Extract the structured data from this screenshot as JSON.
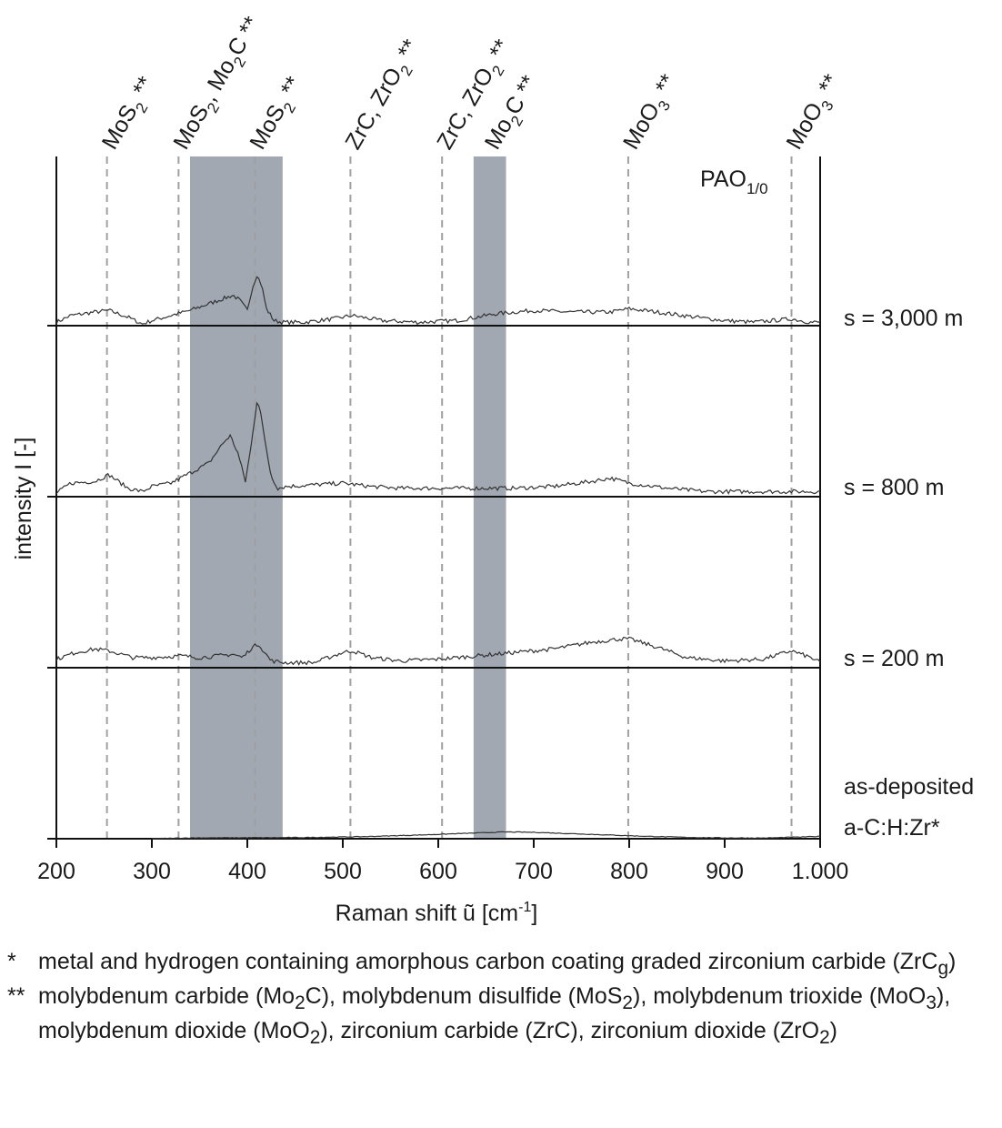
{
  "chart_data": {
    "type": "line",
    "title": "",
    "condition_label": "PAO",
    "condition_label_sub": "1/0",
    "xlabel": "Raman shift ũ [cm",
    "xlabel_sup": "-1",
    "xlabel_end": "]",
    "ylabel": "intensity I [-]",
    "xlim": [
      200,
      1000
    ],
    "xticks": [
      200,
      300,
      400,
      500,
      600,
      700,
      800,
      900,
      1000
    ],
    "xtick_labels": [
      "200",
      "300",
      "400",
      "500",
      "600",
      "700",
      "800",
      "900",
      "1.000"
    ],
    "shaded_regions": [
      {
        "from": 340,
        "to": 437
      },
      {
        "from": 637,
        "to": 671
      }
    ],
    "reference_lines": [
      {
        "x": 253,
        "label": "MoS",
        "sub": "2",
        "after": " **"
      },
      {
        "x": 328,
        "label": "MoS",
        "sub": "2",
        "after": ", Mo",
        "sub2": "2",
        "after2": "C **"
      },
      {
        "x": 408,
        "label": "MoS",
        "sub": "2",
        "after": " **"
      },
      {
        "x": 508,
        "label": "ZrC, ZrO",
        "sub": "2",
        "after": " **"
      },
      {
        "x": 604,
        "label": "ZrC, ZrO",
        "sub": "2",
        "after": " **"
      },
      {
        "x": 654,
        "label": "Mo",
        "sub": "2",
        "after": "C **",
        "no_line": true
      },
      {
        "x": 799,
        "label": "MoO",
        "sub": "3",
        "after": " **"
      },
      {
        "x": 970,
        "label": "MoO",
        "sub": "3",
        "after": " **"
      }
    ],
    "series": [
      {
        "name": "s = 3,000 m",
        "x": [
          200,
          215,
          240,
          255,
          275,
          290,
          300,
          320,
          340,
          360,
          375,
          385,
          392,
          400,
          405,
          410,
          415,
          420,
          428,
          437,
          460,
          490,
          510,
          540,
          580,
          620,
          660,
          700,
          740,
          780,
          800,
          830,
          870,
          900,
          930,
          970,
          990,
          1000
        ],
        "values": [
          0.02,
          0.06,
          0.08,
          0.09,
          0.05,
          0.01,
          0.03,
          0.06,
          0.09,
          0.13,
          0.16,
          0.18,
          0.15,
          0.09,
          0.22,
          0.3,
          0.24,
          0.1,
          0.03,
          0.02,
          0.02,
          0.04,
          0.06,
          0.03,
          0.02,
          0.03,
          0.07,
          0.09,
          0.08,
          0.08,
          0.1,
          0.08,
          0.05,
          0.03,
          0.02,
          0.04,
          0.02,
          0.02
        ]
      },
      {
        "name": "s = 800 m",
        "x": [
          200,
          215,
          240,
          255,
          275,
          290,
          300,
          320,
          340,
          360,
          375,
          382,
          390,
          398,
          404,
          410,
          413,
          418,
          425,
          432,
          440,
          470,
          500,
          530,
          560,
          600,
          640,
          680,
          720,
          760,
          780,
          800,
          840,
          880,
          920,
          960,
          1000
        ],
        "values": [
          0.02,
          0.08,
          0.09,
          0.13,
          0.05,
          0.03,
          0.06,
          0.08,
          0.14,
          0.2,
          0.32,
          0.36,
          0.26,
          0.09,
          0.3,
          0.56,
          0.54,
          0.34,
          0.12,
          0.05,
          0.06,
          0.07,
          0.08,
          0.06,
          0.05,
          0.05,
          0.05,
          0.05,
          0.06,
          0.09,
          0.11,
          0.08,
          0.05,
          0.03,
          0.03,
          0.03,
          0.03
        ]
      },
      {
        "name": "s = 200 m",
        "x": [
          200,
          220,
          240,
          255,
          280,
          300,
          330,
          350,
          370,
          385,
          395,
          405,
          412,
          418,
          425,
          440,
          470,
          500,
          510,
          530,
          560,
          600,
          640,
          680,
          720,
          760,
          790,
          800,
          830,
          860,
          900,
          940,
          970,
          990,
          1000
        ],
        "values": [
          0.05,
          0.09,
          0.11,
          0.1,
          0.06,
          0.06,
          0.07,
          0.06,
          0.07,
          0.08,
          0.06,
          0.12,
          0.14,
          0.09,
          0.04,
          0.03,
          0.03,
          0.09,
          0.1,
          0.06,
          0.04,
          0.05,
          0.07,
          0.09,
          0.11,
          0.15,
          0.17,
          0.17,
          0.12,
          0.06,
          0.04,
          0.05,
          0.1,
          0.06,
          0.03
        ]
      },
      {
        "name": "as-deposited",
        "name_line2": "a-C:H:Zr*",
        "x": [
          300,
          340,
          400,
          460,
          520,
          580,
          630,
          670,
          700,
          740,
          780,
          820,
          860,
          900,
          940,
          980,
          1000
        ],
        "values": [
          0.0,
          0.005,
          0.006,
          0.007,
          0.012,
          0.022,
          0.032,
          0.04,
          0.038,
          0.03,
          0.022,
          0.014,
          0.008,
          0.005,
          0.004,
          0.01,
          0.014
        ]
      }
    ]
  },
  "footnotes": [
    {
      "mark": "*",
      "text": "metal and hydrogen containing amorphous carbon coating graded zirconium carbide (ZrC",
      "sub": "g",
      "text_end": ")"
    },
    {
      "mark": "**",
      "text_1": "molybdenum carbide (Mo",
      "sub_1": "2",
      "text_2": "C), molybdenum disulfide (MoS",
      "sub_2": "2",
      "text_3": "), molybdenum trioxide (MoO",
      "sub_3": "3",
      "text_4": "), molybdenum dioxide (MoO",
      "sub_4": "2",
      "text_5": "), zirconium carbide (ZrC), zirconium dioxide (ZrO",
      "sub_5": "2",
      "text_6": ")"
    }
  ],
  "colors": {
    "shade": "#a2a8b1",
    "refline": "#9ea0a3",
    "trace": "#333333",
    "axis": "#111111"
  }
}
